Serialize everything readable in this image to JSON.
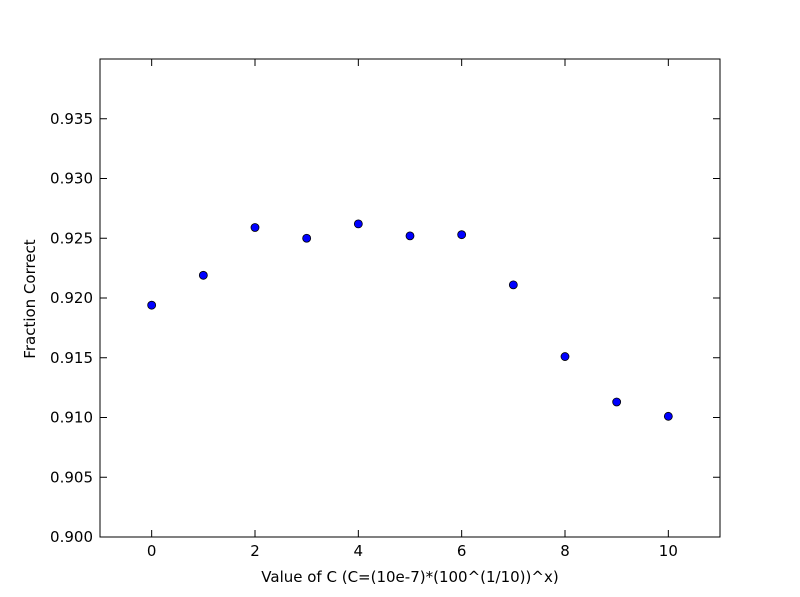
{
  "chart_data": {
    "type": "scatter",
    "title": "",
    "xlabel": "Value of C (C=(10e-7)*(100^(1/10))^x)",
    "ylabel": "Fraction Correct",
    "xlim": [
      -1,
      11
    ],
    "ylim": [
      0.9,
      0.94
    ],
    "x_ticks": [
      0,
      2,
      4,
      6,
      8,
      10
    ],
    "x_tick_labels": [
      "0",
      "2",
      "4",
      "6",
      "8",
      "10"
    ],
    "y_ticks": [
      0.9,
      0.905,
      0.91,
      0.915,
      0.92,
      0.925,
      0.93,
      0.935
    ],
    "y_tick_labels": [
      "0.900",
      "0.905",
      "0.910",
      "0.915",
      "0.920",
      "0.925",
      "0.930",
      "0.935"
    ],
    "grid": false,
    "marker_color": "#0000ff",
    "marker_edge_color": "#000000",
    "series": [
      {
        "x": [
          0,
          1,
          2,
          3,
          4,
          5,
          6,
          7,
          8,
          9,
          10
        ],
        "y": [
          0.9194,
          0.9219,
          0.9259,
          0.925,
          0.9262,
          0.9252,
          0.9253,
          0.9211,
          0.9151,
          0.9113,
          0.9101
        ]
      }
    ]
  }
}
